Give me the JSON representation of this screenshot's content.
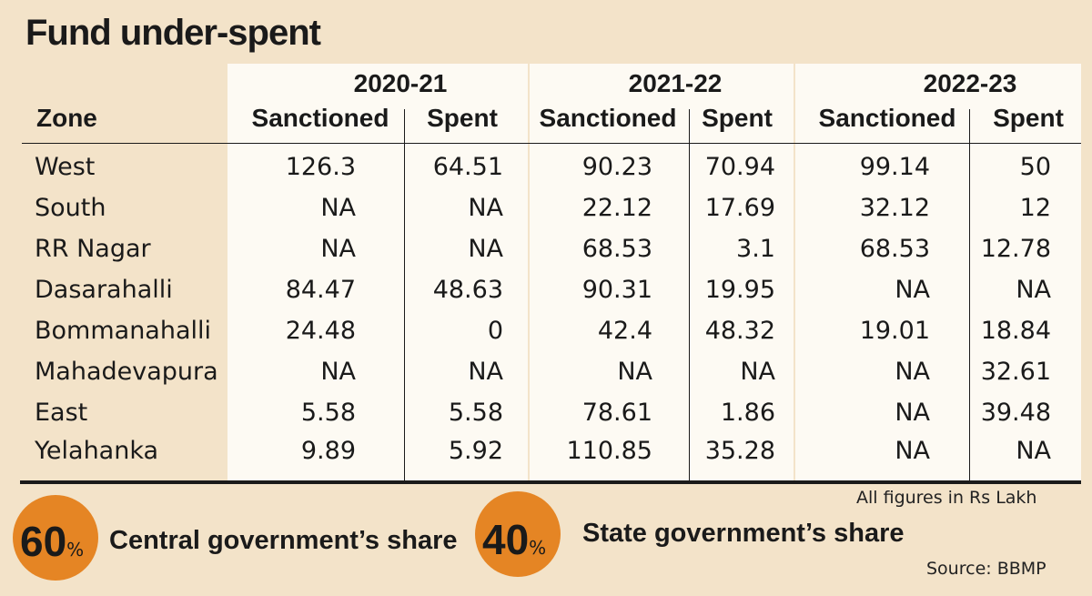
{
  "title": "Fund under-spent",
  "chart_data": {
    "type": "table",
    "title": "Fund under-spent",
    "zone_header": "Zone",
    "years": [
      "2020-21",
      "2021-22",
      "2022-23"
    ],
    "columns": [
      "Sanctioned",
      "Spent"
    ],
    "rows": [
      {
        "zone": "West",
        "values": [
          "126.3",
          "64.51",
          "90.23",
          "70.94",
          "99.14",
          "50"
        ]
      },
      {
        "zone": "South",
        "values": [
          "NA",
          "NA",
          "22.12",
          "17.69",
          "32.12",
          "12"
        ]
      },
      {
        "zone": "RR Nagar",
        "values": [
          "NA",
          "NA",
          "68.53",
          "3.1",
          "68.53",
          "12.78"
        ]
      },
      {
        "zone": "Dasarahalli",
        "values": [
          "84.47",
          "48.63",
          "90.31",
          "19.95",
          "NA",
          "NA"
        ]
      },
      {
        "zone": "Bommanahalli",
        "values": [
          "24.48",
          "0",
          "42.4",
          "48.32",
          "19.01",
          "18.84"
        ]
      },
      {
        "zone": "Mahadevapura",
        "values": [
          "NA",
          "NA",
          "NA",
          "NA",
          "NA",
          "32.61"
        ]
      },
      {
        "zone": "East",
        "values": [
          "5.58",
          "5.58",
          "78.61",
          "1.86",
          "NA",
          "39.48"
        ]
      },
      {
        "zone": "Yelahanka",
        "values": [
          "9.89",
          "5.92",
          "110.85",
          "35.28",
          "NA",
          "NA"
        ]
      }
    ],
    "unit_note": "All figures in Rs Lakh"
  },
  "shares": [
    {
      "value": "60",
      "sign": "%",
      "label": "Central government’s share"
    },
    {
      "value": "40",
      "sign": "%",
      "label": "State government’s share"
    }
  ],
  "source": "Source: BBMP",
  "colors": {
    "background": "#f3e3c9",
    "panel": "#fdfaf3",
    "accent": "#e58524",
    "text": "#1a1a1a"
  }
}
